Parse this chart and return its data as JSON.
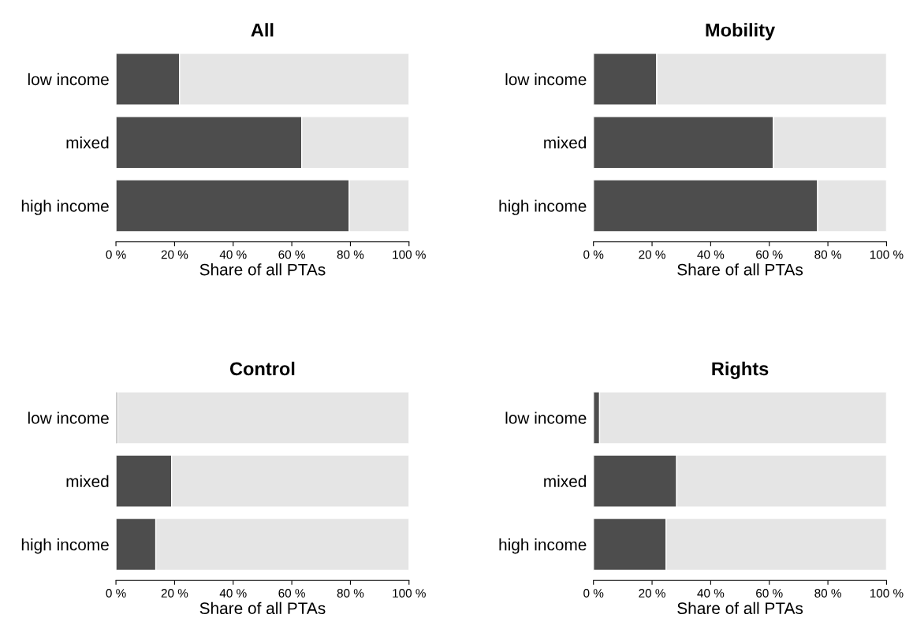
{
  "chart_data": [
    {
      "type": "bar",
      "title": "All",
      "xlabel": "Share of all PTAs",
      "orientation": "horizontal",
      "stacked": true,
      "categories": [
        "low income",
        "mixed",
        "high income"
      ],
      "series": [
        {
          "color": "#4d4d4d",
          "values": [
            21.7,
            63.4,
            79.6
          ]
        },
        {
          "color": "#e5e5e5",
          "values": [
            78.3,
            36.6,
            20.4
          ]
        }
      ],
      "xlim": [
        0,
        100
      ],
      "xticks": [
        {
          "value": 0,
          "label": "0 %"
        },
        {
          "value": 20,
          "label": "20 %"
        },
        {
          "value": 40,
          "label": "40 %"
        },
        {
          "value": 60,
          "label": "60 %"
        },
        {
          "value": 80,
          "label": "80 %"
        },
        {
          "value": 100,
          "label": "100 %"
        }
      ]
    },
    {
      "type": "bar",
      "title": "Mobility",
      "xlabel": "Share of all PTAs",
      "orientation": "horizontal",
      "stacked": true,
      "categories": [
        "low income",
        "mixed",
        "high income"
      ],
      "series": [
        {
          "color": "#4d4d4d",
          "values": [
            21.6,
            61.4,
            76.5
          ]
        },
        {
          "color": "#e5e5e5",
          "values": [
            78.4,
            38.6,
            23.5
          ]
        }
      ],
      "xlim": [
        0,
        100
      ],
      "xticks": [
        {
          "value": 0,
          "label": "0 %"
        },
        {
          "value": 20,
          "label": "20 %"
        },
        {
          "value": 40,
          "label": "40 %"
        },
        {
          "value": 60,
          "label": "60 %"
        },
        {
          "value": 80,
          "label": "80 %"
        },
        {
          "value": 100,
          "label": "100 %"
        }
      ]
    },
    {
      "type": "bar",
      "title": "Control",
      "xlabel": "Share of all PTAs",
      "orientation": "horizontal",
      "stacked": true,
      "categories": [
        "low income",
        "mixed",
        "high income"
      ],
      "series": [
        {
          "color": "#4d4d4d",
          "values": [
            0.6,
            19.0,
            13.6
          ]
        },
        {
          "color": "#e5e5e5",
          "values": [
            99.4,
            81.0,
            86.4
          ]
        }
      ],
      "xlim": [
        0,
        100
      ],
      "xticks": [
        {
          "value": 0,
          "label": "0 %"
        },
        {
          "value": 20,
          "label": "20 %"
        },
        {
          "value": 40,
          "label": "40 %"
        },
        {
          "value": 60,
          "label": "60 %"
        },
        {
          "value": 80,
          "label": "80 %"
        },
        {
          "value": 100,
          "label": "100 %"
        }
      ]
    },
    {
      "type": "bar",
      "title": "Rights",
      "xlabel": "Share of all PTAs",
      "orientation": "horizontal",
      "stacked": true,
      "categories": [
        "low income",
        "mixed",
        "high income"
      ],
      "series": [
        {
          "color": "#4d4d4d",
          "values": [
            2.1,
            28.4,
            24.8
          ]
        },
        {
          "color": "#e5e5e5",
          "values": [
            97.9,
            71.6,
            75.2
          ]
        }
      ],
      "xlim": [
        0,
        100
      ],
      "xticks": [
        {
          "value": 0,
          "label": "0 %"
        },
        {
          "value": 20,
          "label": "20 %"
        },
        {
          "value": 40,
          "label": "40 %"
        },
        {
          "value": 60,
          "label": "60 %"
        },
        {
          "value": 80,
          "label": "80 %"
        },
        {
          "value": 100,
          "label": "100 %"
        }
      ]
    }
  ]
}
